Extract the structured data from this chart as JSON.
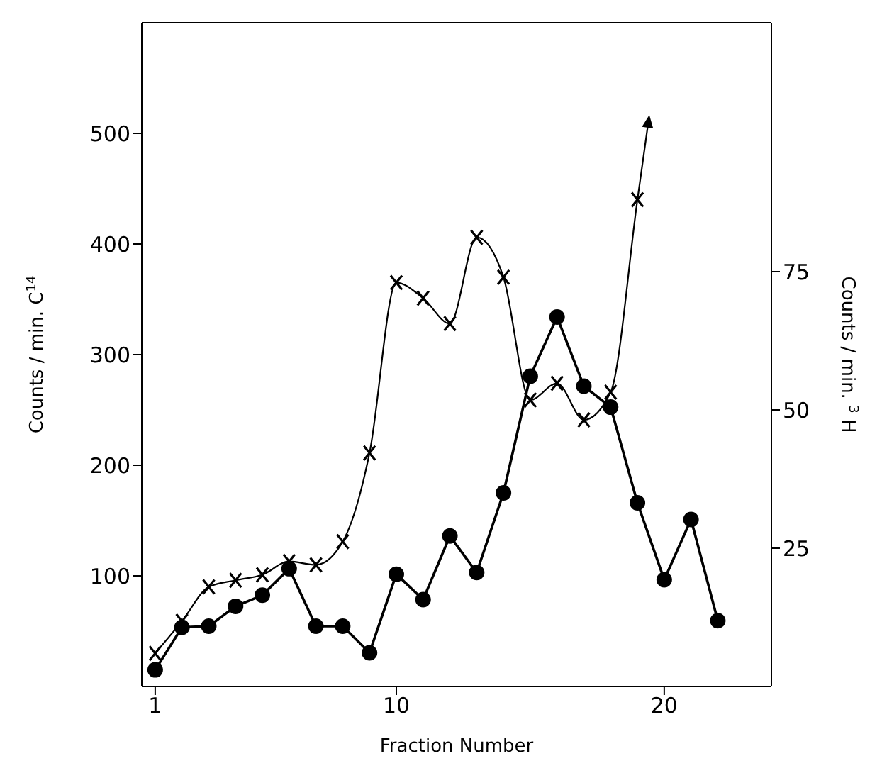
{
  "chart_data": {
    "type": "line",
    "xlabel": "Fraction Number",
    "ylabel": "Counts / min. C$^{14}$",
    "y2label": "Counts / min. $^{3}$H",
    "xlim": [
      0.5,
      24
    ],
    "xticks": [
      1,
      10,
      20
    ],
    "ylim": [
      0,
      600
    ],
    "yticks": [
      100,
      200,
      300,
      400,
      500
    ],
    "y2lim": [
      0,
      120
    ],
    "y2ticks": [
      25,
      50,
      75
    ],
    "grid": false,
    "series": [
      {
        "color": "#000000",
        "marker": "cross",
        "x": [
          1,
          2,
          3,
          4,
          5,
          6,
          7,
          8,
          9,
          10,
          11,
          12,
          13,
          14,
          15,
          16,
          17,
          18,
          19,
          19.4
        ],
        "values": [
          30,
          59,
          90,
          96,
          101,
          113,
          110,
          131,
          211,
          365,
          351,
          328,
          406,
          370,
          259,
          274,
          241,
          266,
          440,
          509
        ]
      },
      {
        "color": "#000000",
        "marker": "circle",
        "axis": "y2",
        "x": [
          1,
          2,
          3,
          4,
          5,
          6,
          7,
          8,
          9,
          10,
          11,
          12,
          13,
          14,
          15,
          16,
          17,
          18,
          19,
          20,
          21,
          22
        ],
        "values": [
          3.0,
          10.7,
          10.9,
          14.5,
          16.5,
          21.3,
          10.9,
          10.9,
          6.1,
          20.3,
          15.7,
          27.2,
          20.6,
          35.0,
          56.1,
          66.8,
          54.3,
          50.5,
          33.2,
          19.3,
          30.2,
          11.9
        ]
      }
    ]
  }
}
